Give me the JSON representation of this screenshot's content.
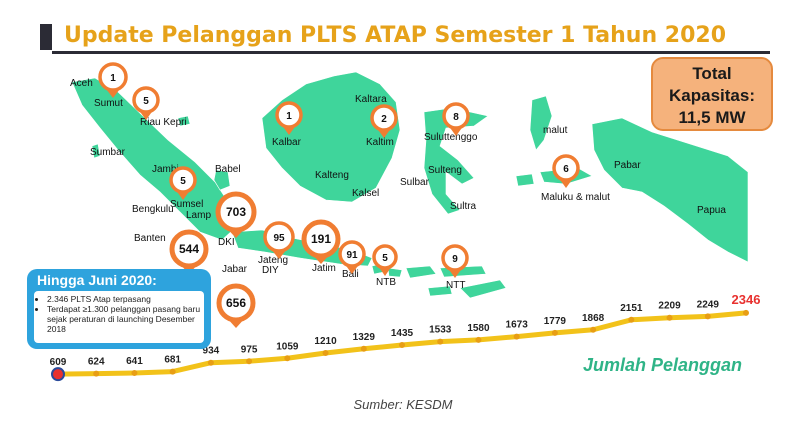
{
  "title": "Update Pelanggan PLTS ATAP Semester  1 Tahun 2020",
  "total_box": {
    "line1": "Total",
    "line2": "Kapasitas:",
    "line3": "11,5 MW"
  },
  "info_box": {
    "heading": "Hingga Juni 2020:",
    "items": [
      "2.346 PLTS Atap terpasang",
      "Terdapat ≥1.300 pelanggan pasang baru sejak peraturan di launching Desember 2018"
    ]
  },
  "series_label": "Jumlah Pelanggan",
  "source": "Sumber: KESDM",
  "colors": {
    "land": "#3fd59b",
    "pin": "#f07d32",
    "line": "#f2c21a",
    "title": "#e6a21a",
    "highlight": "#e8312f"
  },
  "regions": [
    {
      "name": "Aceh"
    },
    {
      "name": "Sumut"
    },
    {
      "name": "Riau Kepri"
    },
    {
      "name": "Sumbar"
    },
    {
      "name": "Jambi"
    },
    {
      "name": "Babel"
    },
    {
      "name": "Sumsel"
    },
    {
      "name": "Bengkulu"
    },
    {
      "name": "Lamp"
    },
    {
      "name": "Banten"
    },
    {
      "name": "DKI"
    },
    {
      "name": "Jabar"
    },
    {
      "name": "Jateng"
    },
    {
      "name": "DIY"
    },
    {
      "name": "Jatim"
    },
    {
      "name": "Bali"
    },
    {
      "name": "NTB"
    },
    {
      "name": "NTT"
    },
    {
      "name": "Kalbar"
    },
    {
      "name": "Kaltara"
    },
    {
      "name": "Kaltim"
    },
    {
      "name": "Kalteng"
    },
    {
      "name": "Kalsel"
    },
    {
      "name": "Suluttenggo"
    },
    {
      "name": "Sulteng"
    },
    {
      "name": "Sulbar"
    },
    {
      "name": "Sultra"
    },
    {
      "name": "malut"
    },
    {
      "name": "Maluku & malut"
    },
    {
      "name": "Pabar"
    },
    {
      "name": "Papua"
    }
  ],
  "pins": [
    {
      "region": "Aceh",
      "value": "1"
    },
    {
      "region": "Riau Kepri",
      "value": "5"
    },
    {
      "region": "Sumsel",
      "value": "5"
    },
    {
      "region": "Lamp",
      "value": "703"
    },
    {
      "region": "Banten",
      "value": "544"
    },
    {
      "region": "Jabar",
      "value": "656"
    },
    {
      "region": "Jateng",
      "value": "95"
    },
    {
      "region": "Jatim",
      "value": "191"
    },
    {
      "region": "Bali",
      "value": "91"
    },
    {
      "region": "NTB",
      "value": "5"
    },
    {
      "region": "NTT",
      "value": "9"
    },
    {
      "region": "Kalbar",
      "value": "1"
    },
    {
      "region": "Kaltim",
      "value": "2"
    },
    {
      "region": "Suluttenggo",
      "value": "8"
    },
    {
      "region": "Maluku & malut",
      "value": "6"
    }
  ],
  "chart_data": {
    "type": "line",
    "series": [
      {
        "name": "Jumlah Pelanggan",
        "values": [
          609,
          624,
          641,
          681,
          934,
          975,
          1059,
          1210,
          1329,
          1435,
          1533,
          1580,
          1673,
          1779,
          1868,
          2151,
          2209,
          2249,
          2346
        ]
      }
    ],
    "ylim": [
      500,
      2400
    ],
    "grid": false,
    "highlight_last": true
  }
}
